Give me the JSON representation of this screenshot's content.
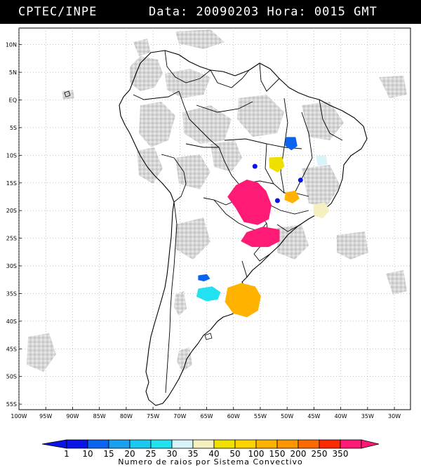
{
  "header": {
    "left_label": "CPTEC/INPE",
    "right_label": "Data: 20090203 Hora: 0015 GMT"
  },
  "map": {
    "lat_ticks": [
      "10N",
      "5N",
      "EQ",
      "5S",
      "10S",
      "15S",
      "20S",
      "25S",
      "30S",
      "35S",
      "40S",
      "45S",
      "50S",
      "55S"
    ],
    "lon_ticks": [
      "100W",
      "95W",
      "90W",
      "85W",
      "80W",
      "75W",
      "70W",
      "65W",
      "60W",
      "55W",
      "50W",
      "45W",
      "40W",
      "35W",
      "30W"
    ],
    "extent": {
      "lon_min": -100,
      "lon_max": -27,
      "lat_min": -56,
      "lat_max": 13
    },
    "cloud_color": "#c8c8c8",
    "systems": [
      {
        "name": "central-brazil-large",
        "color": "#ff1a75",
        "lon": -55.5,
        "lat": -20.5,
        "value": 350
      },
      {
        "name": "parana-south",
        "color": "#ff1a75",
        "lon": -54,
        "lat": -25,
        "value": 350
      },
      {
        "name": "argentina-east",
        "color": "#ffb300",
        "lon": -57.5,
        "lat": -37,
        "value": 100
      },
      {
        "name": "argentina-west",
        "color": "#22e2f2",
        "lon": -64.5,
        "lat": -35,
        "value": 25
      },
      {
        "name": "argentina-small",
        "color": "#0a64f0",
        "lon": -65.5,
        "lat": -32.2,
        "value": 10
      },
      {
        "name": "bahia-blue",
        "color": "#0a64f0",
        "lon": -49.2,
        "lat": -7.8,
        "value": 10
      },
      {
        "name": "goias-orange",
        "color": "#ffb300",
        "lon": -49,
        "lat": -17.5,
        "value": 100
      },
      {
        "name": "tocantins-yellow",
        "color": "#f0e000",
        "lon": -52,
        "lat": -11.5,
        "value": 40
      },
      {
        "name": "minas-cream",
        "color": "#f4f0c0",
        "lon": -43.5,
        "lat": -20,
        "value": 35
      },
      {
        "name": "bahia-cyan",
        "color": "#d8f4f8",
        "lon": -43.5,
        "lat": -11,
        "value": 30
      }
    ]
  },
  "legend": {
    "title": "Numero de raios por Sistema Convectivo",
    "labels": [
      "1",
      "10",
      "15",
      "20",
      "25",
      "30",
      "35",
      "40",
      "50",
      "100",
      "150",
      "200",
      "250",
      "350"
    ],
    "colors": [
      "#0a14e6",
      "#0a64f0",
      "#1aa0f0",
      "#1ac8f0",
      "#22e2f2",
      "#d8f4f8",
      "#f4f0c0",
      "#f0e000",
      "#ffd200",
      "#ffb300",
      "#ff9600",
      "#ff6a00",
      "#ff2a00",
      "#ff1a75"
    ]
  }
}
